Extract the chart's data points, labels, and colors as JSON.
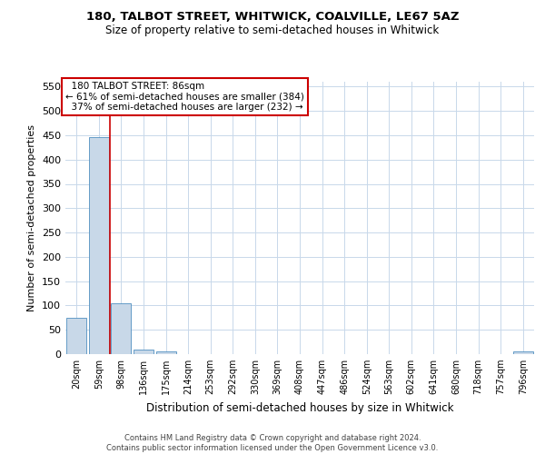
{
  "title": "180, TALBOT STREET, WHITWICK, COALVILLE, LE67 5AZ",
  "subtitle": "Size of property relative to semi-detached houses in Whitwick",
  "xlabel": "Distribution of semi-detached houses by size in Whitwick",
  "ylabel": "Number of semi-detached properties",
  "footer_line1": "Contains HM Land Registry data © Crown copyright and database right 2024.",
  "footer_line2": "Contains public sector information licensed under the Open Government Licence v3.0.",
  "bin_labels": [
    "20sqm",
    "59sqm",
    "98sqm",
    "136sqm",
    "175sqm",
    "214sqm",
    "253sqm",
    "292sqm",
    "330sqm",
    "369sqm",
    "408sqm",
    "447sqm",
    "486sqm",
    "524sqm",
    "563sqm",
    "602sqm",
    "641sqm",
    "680sqm",
    "718sqm",
    "757sqm",
    "796sqm"
  ],
  "bar_values": [
    75,
    447,
    105,
    10,
    5,
    0,
    0,
    0,
    0,
    0,
    0,
    0,
    0,
    0,
    0,
    0,
    0,
    0,
    0,
    0,
    5
  ],
  "bar_color": "#c8d8e8",
  "bar_edge_color": "#5090c0",
  "ylim": [
    0,
    560
  ],
  "yticks": [
    0,
    50,
    100,
    150,
    200,
    250,
    300,
    350,
    400,
    450,
    500,
    550
  ],
  "property_label": "180 TALBOT STREET: 86sqm",
  "pct_smaller": 61,
  "count_smaller": 384,
  "pct_larger": 37,
  "count_larger": 232,
  "vline_x": 1.5,
  "vline_color": "#cc0000",
  "annotation_box_color": "#cc0000",
  "grid_color": "#c8d8ea",
  "background_color": "#ffffff",
  "title_fontsize": 9.5,
  "subtitle_fontsize": 8.5,
  "ylabel_fontsize": 8,
  "xlabel_fontsize": 8.5,
  "tick_fontsize": 8,
  "xtick_fontsize": 7,
  "annot_fontsize": 7.5,
  "footer_fontsize": 6
}
